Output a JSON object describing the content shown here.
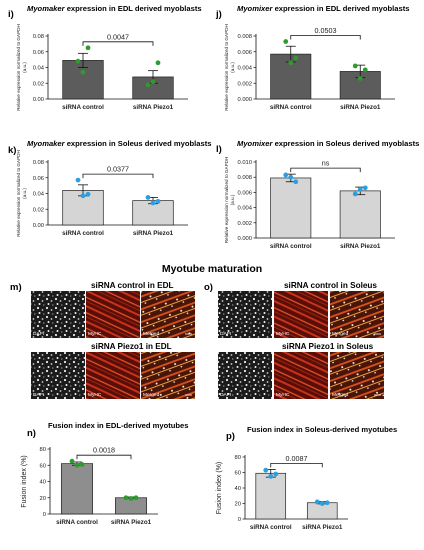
{
  "chart_data": [
    {
      "id": "i",
      "type": "bar",
      "letter": "i)",
      "title_italic": "Myomaker",
      "title_rest": " expression in EDL derived myoblasts",
      "ylabel": "Relative expression normalized to GAPDH",
      "yunit": "(a.u.)",
      "categories": [
        "siRNA control",
        "siRNA Piezo1"
      ],
      "values": [
        0.049,
        0.028
      ],
      "errors": [
        0.009,
        0.008
      ],
      "points": [
        [
          0.048,
          0.034,
          0.065
        ],
        [
          0.018,
          0.022,
          0.046
        ]
      ],
      "ylim": [
        0,
        0.08
      ],
      "yticks": [
        "0.00",
        "0.02",
        "0.04",
        "0.06",
        "0.08"
      ],
      "annotation": "0.0047",
      "bar_color": "#5c5c5c",
      "point_color": "#2e9b2e"
    },
    {
      "id": "j",
      "type": "bar",
      "letter": "j)",
      "title_italic": "Myomixer",
      "title_rest": " expression in EDL derived myoblasts",
      "ylabel": "Relative expression normalized to GAPDH",
      "yunit": "(a.u.)",
      "categories": [
        "siRNA control",
        "siRNA Piezo1"
      ],
      "values": [
        0.0057,
        0.0035
      ],
      "errors": [
        0.001,
        0.0008
      ],
      "points": [
        [
          0.0073,
          0.0046,
          0.0052
        ],
        [
          0.0042,
          0.0026,
          0.0037
        ]
      ],
      "ylim": [
        0,
        0.008
      ],
      "yticks": [
        "0.000",
        "0.002",
        "0.004",
        "0.006",
        "0.008"
      ],
      "annotation": "0.0503",
      "bar_color": "#5c5c5c",
      "point_color": "#2e9b2e"
    },
    {
      "id": "k",
      "type": "bar",
      "letter": "k)",
      "title_italic": "Myomaker",
      "title_rest": " expression in Soleus derived myoblasts",
      "ylabel": "Relative expression normalized to GAPDH",
      "yunit": "(a.u.)",
      "categories": [
        "siRNA control",
        "siRNA Piezo1"
      ],
      "values": [
        0.044,
        0.031
      ],
      "errors": [
        0.007,
        0.004
      ],
      "points": [
        [
          0.057,
          0.037,
          0.039
        ],
        [
          0.035,
          0.028,
          0.03
        ]
      ],
      "ylim": [
        0,
        0.08
      ],
      "yticks": [
        "0.00",
        "0.02",
        "0.04",
        "0.06",
        "0.08"
      ],
      "annotation": "0.0377",
      "bar_color": "#d5d5d5",
      "point_color": "#2b9fe0"
    },
    {
      "id": "l",
      "type": "bar",
      "letter": "l)",
      "title_italic": "Myomixer",
      "title_rest": " expression in Soleus derived myoblasts",
      "ylabel": "Relative expression normalized to GAPDH",
      "yunit": "(a.u.)",
      "categories": [
        "siRNA control",
        "siRNA Piezo1"
      ],
      "values": [
        0.0079,
        0.0062
      ],
      "errors": [
        0.0005,
        0.0005
      ],
      "points": [
        [
          0.0083,
          0.008,
          0.0074
        ],
        [
          0.0058,
          0.0064,
          0.0066
        ]
      ],
      "ylim": [
        0,
        0.01
      ],
      "yticks": [
        "0.000",
        "0.002",
        "0.004",
        "0.006",
        "0.008",
        "0.010"
      ],
      "annotation": "ns",
      "bar_color": "#d5d5d5",
      "point_color": "#2b9fe0"
    },
    {
      "id": "n",
      "type": "bar",
      "letter": "n)",
      "title_italic": "",
      "title_rest": "Fusion index in EDL-derived myotubes",
      "ylabel": "Fusion index (%)",
      "yunit": "",
      "categories": [
        "siRNA control",
        "siRNA Piezo1"
      ],
      "values": [
        62,
        20
      ],
      "errors": [
        2,
        1
      ],
      "points": [
        [
          65,
          60,
          61
        ],
        [
          20,
          19,
          20
        ]
      ],
      "ylim": [
        0,
        80
      ],
      "yticks": [
        "0",
        "20",
        "40",
        "60",
        "80"
      ],
      "annotation": "0.0018",
      "bar_color": "#8e8e8e",
      "point_color": "#2e9b2e"
    },
    {
      "id": "p",
      "type": "bar",
      "letter": "p)",
      "title_italic": "",
      "title_rest": "Fusion index in Soleus-derived myotubes",
      "ylabel": "Fusion index (%)",
      "yunit": "",
      "categories": [
        "siRNA control",
        "siRNA Piezo1"
      ],
      "values": [
        59,
        21
      ],
      "errors": [
        5,
        1.5
      ],
      "points": [
        [
          63,
          55,
          58
        ],
        [
          22,
          20,
          21
        ]
      ],
      "ylim": [
        0,
        80
      ],
      "yticks": [
        "0",
        "20",
        "40",
        "60",
        "80"
      ],
      "annotation": "0.0087",
      "bar_color": "#d5d5d5",
      "point_color": "#2b9fe0"
    }
  ],
  "microscopy": {
    "title": "Myotube maturation",
    "panels": [
      {
        "letter": "m)",
        "row1_title": "siRNA control in EDL",
        "row2_title": "siRNA Piezo1 in EDL"
      },
      {
        "letter": "o)",
        "row1_title": "siRNA control in Soleus",
        "row2_title": "siRNA Piezo1 in Soleus"
      }
    ],
    "channels": [
      "DAPI",
      "MyHC",
      "Merged"
    ]
  }
}
